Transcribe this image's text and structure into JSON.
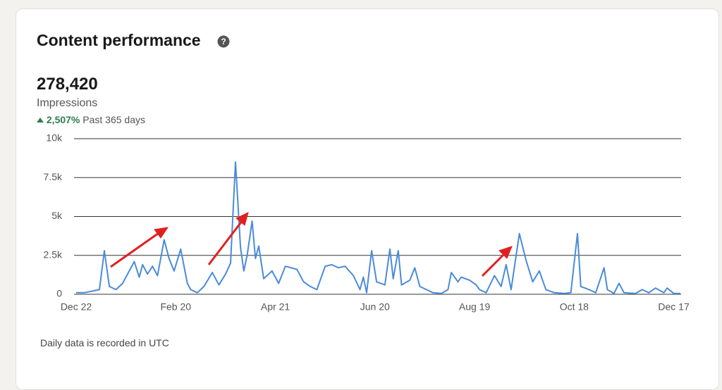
{
  "header": {
    "title": "Content performance",
    "total": "278,420",
    "metric": "Impressions",
    "change": "2,507%",
    "period": "Past 365 days"
  },
  "footer": "Daily data is recorded in UTC",
  "chart_data": {
    "type": "line",
    "color": "#4a8bd8",
    "grid": true,
    "x": [
      0,
      5,
      14,
      17,
      20,
      24,
      28,
      33,
      35,
      38,
      40,
      43,
      46,
      49,
      53,
      56,
      59,
      63,
      67,
      69,
      73,
      77,
      82,
      86,
      90,
      93,
      96,
      99,
      101,
      103,
      106,
      108,
      110,
      113,
      118,
      122,
      126,
      133,
      137,
      141,
      145,
      150,
      154,
      158,
      162,
      167,
      171,
      173,
      175,
      178,
      181,
      186,
      189,
      191,
      194,
      196,
      201,
      204,
      207,
      211,
      215,
      220,
      224,
      226,
      230,
      232,
      237,
      241,
      243,
      247,
      252,
      256,
      259,
      262,
      267,
      271,
      275,
      279,
      283,
      288,
      294,
      298,
      302,
      304,
      309,
      313,
      318,
      320,
      324,
      327,
      330,
      337,
      341,
      345,
      349,
      354,
      356,
      360,
      364
    ],
    "series": [
      {
        "name": "Impressions",
        "color": "#4a8bd8",
        "values": [
          100,
          100,
          300,
          2800,
          500,
          300,
          700,
          1700,
          2100,
          1100,
          1900,
          1300,
          1800,
          1200,
          3500,
          2300,
          1500,
          2900,
          700,
          300,
          100,
          500,
          1400,
          600,
          1300,
          2000,
          8500,
          3000,
          1500,
          2500,
          4700,
          2300,
          3100,
          1000,
          1500,
          700,
          1800,
          1600,
          800,
          500,
          300,
          1800,
          1900,
          1700,
          1800,
          1200,
          300,
          1100,
          100,
          2800,
          800,
          600,
          2900,
          1000,
          2800,
          600,
          900,
          1700,
          500,
          300,
          100,
          50,
          300,
          1400,
          800,
          1100,
          900,
          600,
          300,
          100,
          1200,
          500,
          1900,
          300,
          3900,
          2200,
          800,
          1500,
          300,
          100,
          50,
          100,
          3900,
          500,
          300,
          100,
          1700,
          300,
          50,
          700,
          100,
          50,
          300,
          100,
          400,
          100,
          400,
          50,
          50
        ]
      }
    ],
    "xlim": [
      0,
      364
    ],
    "xticks": [
      {
        "value": 0,
        "label": "Dec 22"
      },
      {
        "value": 60,
        "label": "Feb 20"
      },
      {
        "value": 120,
        "label": "Apr 21"
      },
      {
        "value": 180,
        "label": "Jun 20"
      },
      {
        "value": 240,
        "label": "Aug 19"
      },
      {
        "value": 300,
        "label": "Oct 18"
      },
      {
        "value": 360,
        "label": "Dec 17"
      }
    ],
    "ylim": [
      0,
      10000
    ],
    "yticks": [
      0,
      {
        "value": 2500,
        "label": "2.5k"
      },
      {
        "value": 5000,
        "label": "5k"
      },
      {
        "value": 7500,
        "label": "7.5k"
      },
      {
        "value": 10000,
        "label": "10k"
      }
    ]
  }
}
